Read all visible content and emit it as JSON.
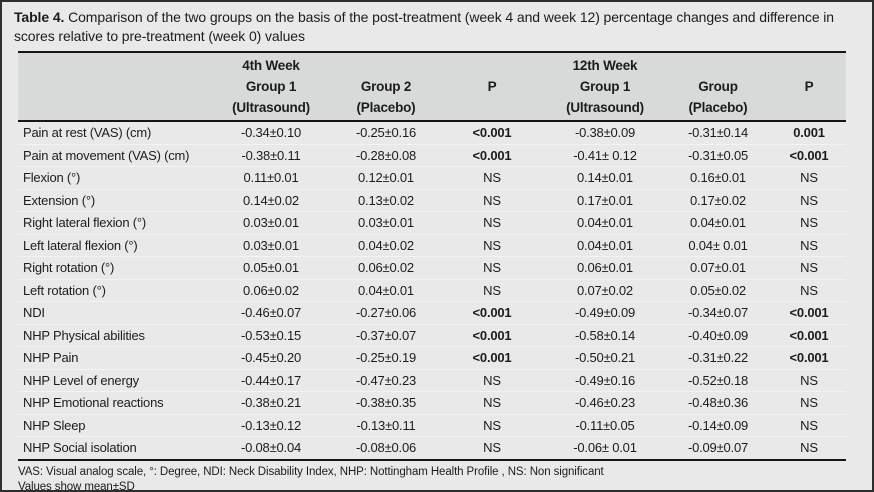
{
  "title": {
    "label": "Table 4.",
    "text": "Comparison of the two groups on the basis of the post-treatment (week 4 and week 12) percentage changes and difference in scores relative to pre-treatment (week 0) values"
  },
  "table": {
    "week4_header": "4th Week",
    "week12_header": "12th Week",
    "columns": {
      "w4_g1": "Group 1",
      "w4_g1_sub": "(Ultrasound)",
      "w4_g2": "Group 2",
      "w4_g2_sub": "(Placebo)",
      "w4_p": "P",
      "w12_g1": "Group 1",
      "w12_g1_sub": "(Ultrasound)",
      "w12_g2": "Group",
      "w12_g2_sub": "(Placebo)",
      "w12_p": "P"
    },
    "rows": [
      {
        "label": "Pain at rest (VAS) (cm)",
        "values": [
          "-0.34±0.10",
          "-0.25±0.16",
          "<0.001",
          "-0.38±0.09",
          "-0.31±0.14",
          "0.001"
        ],
        "p_bold": true
      },
      {
        "label": "Pain at movement (VAS) (cm)",
        "values": [
          "-0.38±0.11",
          "-0.28±0.08",
          "<0.001",
          "-0.41± 0.12",
          "-0.31±0.05",
          "<0.001"
        ],
        "p_bold": true
      },
      {
        "label": "Flexion (°)",
        "values": [
          "0.11±0.01",
          "0.12±0.01",
          "NS",
          "0.14±0.01",
          "0.16±0.01",
          "NS"
        ],
        "p_bold": false
      },
      {
        "label": "Extension (°)",
        "values": [
          "0.14±0.02",
          "0.13±0.02",
          "NS",
          "0.17±0.01",
          "0.17±0.02",
          "NS"
        ],
        "p_bold": false
      },
      {
        "label": "Right lateral flexion (°)",
        "values": [
          "0.03±0.01",
          "0.03±0.01",
          "NS",
          "0.04±0.01",
          "0.04±0.01",
          "NS"
        ],
        "p_bold": false
      },
      {
        "label": "Left lateral flexion (°)",
        "values": [
          "0.03±0.01",
          "0.04±0.02",
          "NS",
          "0.04±0.01",
          "0.04± 0.01",
          "NS"
        ],
        "p_bold": false
      },
      {
        "label": "Right rotation (°)",
        "values": [
          "0.05±0.01",
          "0.06±0.02",
          "NS",
          "0.06±0.01",
          "0.07±0.01",
          "NS"
        ],
        "p_bold": false
      },
      {
        "label": "Left rotation (°)",
        "values": [
          "0.06±0.02",
          "0.04±0.01",
          "NS",
          "0.07±0.02",
          "0.05±0.02",
          "NS"
        ],
        "p_bold": false
      },
      {
        "label": "NDI",
        "values": [
          "-0.46±0.07",
          "-0.27±0.06",
          "<0.001",
          "-0.49±0.09",
          "-0.34±0.07",
          "<0.001"
        ],
        "p_bold": true
      },
      {
        "label": "NHP Physical abilities",
        "values": [
          "-0.53±0.15",
          "-0.37±0.07",
          "<0.001",
          "-0.58±0.14",
          "-0.40±0.09",
          "<0.001"
        ],
        "p_bold": true
      },
      {
        "label": "NHP Pain",
        "values": [
          "-0.45±0.20",
          "-0.25±0.19",
          "<0.001",
          "-0.50±0.21",
          "-0.31±0.22",
          "<0.001"
        ],
        "p_bold": true
      },
      {
        "label": "NHP Level of energy",
        "values": [
          "-0.44±0.17",
          "-0.47±0.23",
          "NS",
          "-0.49±0.16",
          "-0.52±0.18",
          "NS"
        ],
        "p_bold": false
      },
      {
        "label": "NHP Emotional reactions",
        "values": [
          "-0.38±0.21",
          "-0.38±0.35",
          "NS",
          "-0.46±0.23",
          "-0.48±0.36",
          "NS"
        ],
        "p_bold": false
      },
      {
        "label": "NHP Sleep",
        "values": [
          "-0.13±0.12",
          "-0.13±0.11",
          "NS",
          "-0.11±0.05",
          "-0.14±0.09",
          "NS"
        ],
        "p_bold": false
      },
      {
        "label": "NHP Social isolation",
        "values": [
          "-0.08±0.04",
          "-0.08±0.06",
          "NS",
          "-0.06± 0.01",
          "-0.09±0.07",
          "NS"
        ],
        "p_bold": false
      }
    ]
  },
  "footnotes": {
    "line1": "VAS: Visual analog scale, °: Degree, NDI: Neck Disability Index, NHP: Nottingham Health Profile , NS: Non significant",
    "line2": "Values show mean±SD"
  },
  "colors": {
    "figure_background": "#e9e9e9",
    "header_band": "#d8dada",
    "rule": "#161616",
    "text": "#1c1c1c"
  }
}
